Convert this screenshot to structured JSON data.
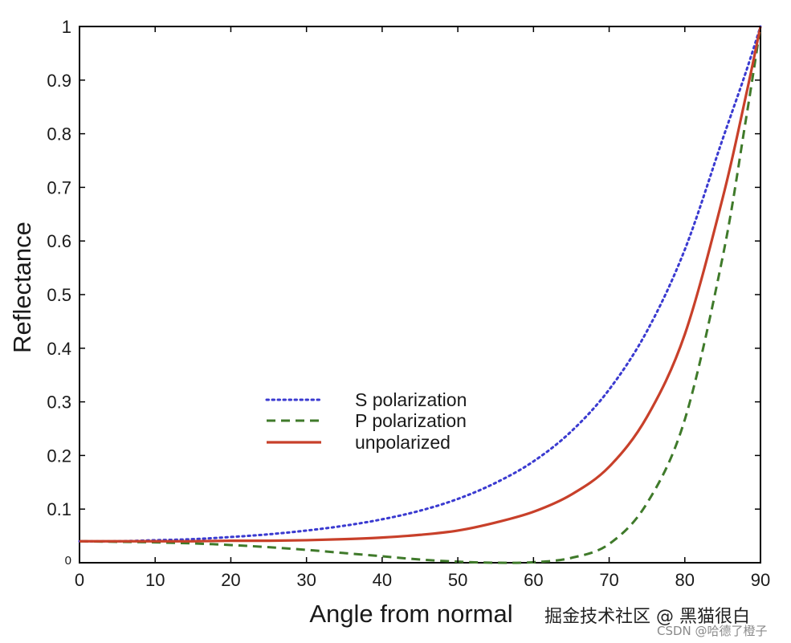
{
  "chart_data": {
    "type": "line",
    "title": "",
    "xlabel": "Angle from normal",
    "ylabel": "Reflectance",
    "xlim": [
      0,
      90
    ],
    "ylim": [
      0,
      1
    ],
    "xticks": [
      0,
      10,
      20,
      30,
      40,
      50,
      60,
      70,
      80,
      90
    ],
    "xtick_labels": [
      "0",
      "10",
      "20",
      "30",
      "40",
      "50",
      "60",
      "70",
      "80",
      "90"
    ],
    "yticks": [
      0,
      0.1,
      0.2,
      0.3,
      0.4,
      0.5,
      0.6,
      0.7,
      0.8,
      0.9,
      1
    ],
    "ytick_labels": [
      "0",
      "0.1",
      "0.2",
      "0.3",
      "0.4",
      "0.5",
      "0.6",
      "0.7",
      "0.8",
      "0.9",
      "1"
    ],
    "grid": false,
    "legend_position": "center-left",
    "x": [
      0,
      5,
      10,
      15,
      20,
      25,
      30,
      35,
      40,
      45,
      50,
      55,
      60,
      65,
      70,
      75,
      80,
      85,
      88,
      90
    ],
    "series": [
      {
        "name": "S polarization",
        "color": "#3a3ad0",
        "style": "dotted",
        "values": [
          0.04,
          0.04,
          0.042,
          0.044,
          0.048,
          0.053,
          0.06,
          0.069,
          0.081,
          0.097,
          0.119,
          0.149,
          0.189,
          0.245,
          0.323,
          0.432,
          0.584,
          0.79,
          0.912,
          1.0
        ]
      },
      {
        "name": "P polarization",
        "color": "#3f7a2a",
        "style": "dashed",
        "values": [
          0.04,
          0.039,
          0.038,
          0.036,
          0.033,
          0.029,
          0.024,
          0.018,
          0.012,
          0.006,
          0.002,
          0.0,
          0.001,
          0.009,
          0.035,
          0.111,
          0.267,
          0.57,
          0.82,
          1.0
        ]
      },
      {
        "name": "unpolarized",
        "color": "#c8402a",
        "style": "solid",
        "values": [
          0.04,
          0.04,
          0.04,
          0.04,
          0.041,
          0.041,
          0.042,
          0.044,
          0.047,
          0.052,
          0.06,
          0.075,
          0.095,
          0.127,
          0.179,
          0.272,
          0.426,
          0.68,
          0.866,
          1.0
        ]
      }
    ]
  },
  "watermark": {
    "main": "掘金技术社区 @ 黑猫很白",
    "sub": "CSDN @哈德了橙子"
  }
}
